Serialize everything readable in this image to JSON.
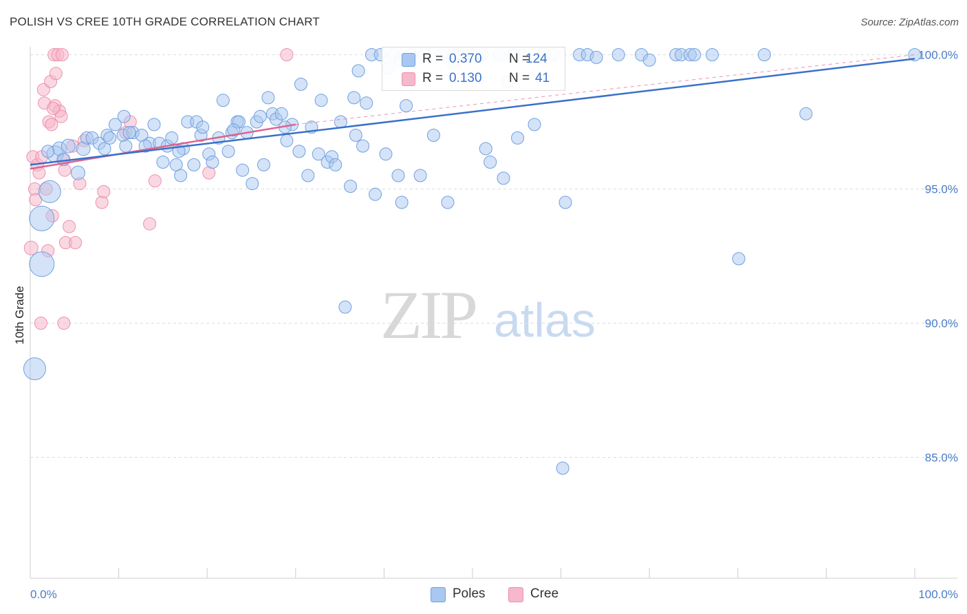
{
  "header": {
    "title": "POLISH VS CREE 10TH GRADE CORRELATION CHART",
    "source": "Source: ZipAtlas.com"
  },
  "watermark": {
    "zip": "ZIP",
    "atlas": "atlas"
  },
  "legend": {
    "rows": [
      {
        "swatch_color": "#a9c7f0",
        "r_label": "R =",
        "r_value": "0.370",
        "n_label": "N =",
        "n_value": "124"
      },
      {
        "swatch_color": "#f6b8cb",
        "r_label": "R =",
        "r_value": "0.130",
        "n_label": "N =",
        "n_value": "41"
      }
    ]
  },
  "bottom_legend": {
    "items": [
      {
        "label": "Poles",
        "color": "#a9c7f0"
      },
      {
        "label": "Cree",
        "color": "#f6b8cb"
      }
    ]
  },
  "chart_data": {
    "type": "scatter",
    "title": "POLISH VS CREE 10TH GRADE CORRELATION CHART",
    "ylabel": "10th Grade",
    "xlabel": "",
    "xlim": [
      0,
      100
    ],
    "ylim": [
      80.5,
      100.5
    ],
    "x_tick_labels": [
      "0.0%",
      "100.0%"
    ],
    "y_tick_labels": [
      "85.0%",
      "90.0%",
      "95.0%",
      "100.0%"
    ],
    "y_tick_values": [
      85,
      90,
      95,
      100
    ],
    "grid": "horizontal dashed",
    "legend_position": "top-center",
    "colors": {
      "poles": "#6fa0e0",
      "poles_fill": "#a9c7f0",
      "cree": "#ee8fae",
      "cree_fill": "#f6b8cb",
      "poles_line": "#3a70c8",
      "cree_line": "#e0628e"
    },
    "series": [
      {
        "name": "Poles",
        "trend": {
          "x": [
            0,
            100
          ],
          "y": [
            95.9,
            99.85
          ]
        },
        "points": [
          [
            0.5,
            88.3,
            16
          ],
          [
            1.3,
            92.2,
            18
          ],
          [
            1.3,
            93.9,
            18
          ],
          [
            2.2,
            94.9,
            16
          ],
          [
            2.8,
            96.3,
            12
          ],
          [
            3.3,
            96.5,
            10
          ],
          [
            4.3,
            96.6,
            10
          ],
          [
            5.4,
            95.6,
            10
          ],
          [
            6.0,
            96.5,
            10
          ],
          [
            6.4,
            96.9,
            9
          ],
          [
            7.0,
            96.9,
            9
          ],
          [
            7.8,
            96.7,
            9
          ],
          [
            8.4,
            96.5,
            9
          ],
          [
            8.7,
            97.0,
            9
          ],
          [
            9.0,
            96.9,
            9
          ],
          [
            9.6,
            97.4,
            9
          ],
          [
            10.5,
            97.0,
            9
          ],
          [
            10.6,
            97.7,
            9
          ],
          [
            10.8,
            96.6,
            9
          ],
          [
            11.6,
            97.1,
            9
          ],
          [
            12.6,
            97.0,
            9
          ],
          [
            13.5,
            96.7,
            9
          ],
          [
            14.0,
            97.4,
            9
          ],
          [
            14.6,
            96.7,
            9
          ],
          [
            15.0,
            96.0,
            9
          ],
          [
            15.5,
            96.6,
            9
          ],
          [
            16.0,
            96.9,
            9
          ],
          [
            16.5,
            95.9,
            9
          ],
          [
            17.0,
            95.5,
            9
          ],
          [
            17.3,
            96.5,
            9
          ],
          [
            17.8,
            97.5,
            9
          ],
          [
            18.5,
            95.9,
            9
          ],
          [
            18.8,
            97.5,
            9
          ],
          [
            19.3,
            97.0,
            9
          ],
          [
            19.5,
            97.3,
            9
          ],
          [
            20.2,
            96.3,
            9
          ],
          [
            20.6,
            96.0,
            9
          ],
          [
            21.3,
            96.9,
            9
          ],
          [
            21.8,
            98.3,
            9
          ],
          [
            22.4,
            96.4,
            9
          ],
          [
            22.8,
            97.1,
            9
          ],
          [
            23.4,
            97.5,
            9
          ],
          [
            23.6,
            97.5,
            9
          ],
          [
            24.0,
            95.7,
            9
          ],
          [
            24.5,
            97.1,
            9
          ],
          [
            25.1,
            95.2,
            9
          ],
          [
            25.6,
            97.5,
            9
          ],
          [
            26.4,
            95.9,
            9
          ],
          [
            26.9,
            98.4,
            9
          ],
          [
            27.4,
            97.8,
            9
          ],
          [
            27.8,
            97.6,
            9
          ],
          [
            28.4,
            97.8,
            9
          ],
          [
            29.0,
            96.8,
            9
          ],
          [
            29.6,
            97.4,
            9
          ],
          [
            30.4,
            96.4,
            9
          ],
          [
            30.6,
            98.9,
            9
          ],
          [
            31.4,
            95.5,
            9
          ],
          [
            31.8,
            97.3,
            9
          ],
          [
            32.6,
            96.3,
            9
          ],
          [
            32.9,
            98.3,
            9
          ],
          [
            33.6,
            96.0,
            9
          ],
          [
            34.1,
            96.2,
            9
          ],
          [
            34.5,
            95.9,
            9
          ],
          [
            35.1,
            97.5,
            9
          ],
          [
            35.6,
            90.6,
            9
          ],
          [
            36.2,
            95.1,
            9
          ],
          [
            36.6,
            98.4,
            9
          ],
          [
            37.1,
            99.4,
            9
          ],
          [
            37.6,
            96.6,
            9
          ],
          [
            38.0,
            98.2,
            9
          ],
          [
            38.6,
            100.0,
            9
          ],
          [
            39.0,
            94.8,
            9
          ],
          [
            39.6,
            100.0,
            9
          ],
          [
            40.2,
            96.3,
            9
          ],
          [
            40.5,
            99.5,
            9
          ],
          [
            41.1,
            100.0,
            9
          ],
          [
            41.6,
            95.5,
            9
          ],
          [
            42.0,
            94.5,
            9
          ],
          [
            42.5,
            98.1,
            9
          ],
          [
            43.0,
            100.0,
            9
          ],
          [
            44.1,
            95.5,
            9
          ],
          [
            44.6,
            100.0,
            9
          ],
          [
            45.6,
            97.0,
            9
          ],
          [
            46.5,
            100.0,
            9
          ],
          [
            47.2,
            94.5,
            9
          ],
          [
            48.1,
            100.0,
            9
          ],
          [
            49.0,
            100.0,
            9
          ],
          [
            50.0,
            100.0,
            9
          ],
          [
            51.1,
            100.0,
            9
          ],
          [
            51.5,
            96.5,
            9
          ],
          [
            52.0,
            96.0,
            9
          ],
          [
            53.0,
            100.0,
            9
          ],
          [
            53.5,
            95.4,
            9
          ],
          [
            54.0,
            99.0,
            9
          ],
          [
            54.6,
            100.0,
            9
          ],
          [
            55.1,
            96.9,
            9
          ],
          [
            55.6,
            100.0,
            9
          ],
          [
            57.0,
            97.4,
            9
          ],
          [
            58.0,
            100.0,
            9
          ],
          [
            59.1,
            100.0,
            9
          ],
          [
            60.5,
            94.5,
            9
          ],
          [
            60.2,
            84.6,
            9
          ],
          [
            62.1,
            100.0,
            9
          ],
          [
            63.0,
            100.0,
            9
          ],
          [
            66.5,
            100.0,
            9
          ],
          [
            69.1,
            100.0,
            9
          ],
          [
            73.0,
            100.0,
            9
          ],
          [
            73.6,
            100.0,
            9
          ],
          [
            74.6,
            100.0,
            9
          ],
          [
            75.1,
            100.0,
            9
          ],
          [
            77.1,
            100.0,
            9
          ],
          [
            80.1,
            92.4,
            9
          ],
          [
            83.0,
            100.0,
            9
          ],
          [
            87.7,
            97.8,
            9
          ],
          [
            100.0,
            100.0,
            9
          ],
          [
            2.0,
            96.4,
            9
          ],
          [
            3.8,
            96.1,
            9
          ],
          [
            11.2,
            97.1,
            9
          ],
          [
            13.0,
            96.6,
            9
          ],
          [
            16.8,
            96.4,
            9
          ],
          [
            23.0,
            97.2,
            9
          ],
          [
            26.0,
            97.7,
            9
          ],
          [
            28.8,
            97.3,
            9
          ],
          [
            36.8,
            97.0,
            9
          ],
          [
            41.8,
            99.8,
            9
          ],
          [
            47.8,
            99.7,
            9
          ],
          [
            64.0,
            99.9,
            9
          ],
          [
            70.0,
            99.8,
            9
          ]
        ]
      },
      {
        "name": "Cree",
        "trend": {
          "x": [
            0,
            30.0
          ],
          "y": [
            95.75,
            97.4
          ]
        },
        "trend_extension": {
          "x": [
            30.0,
            100
          ],
          "y": [
            97.4,
            100.0
          ]
        },
        "points": [
          [
            0.1,
            92.8,
            10
          ],
          [
            0.3,
            96.2,
            9
          ],
          [
            0.5,
            95.0,
            9
          ],
          [
            0.6,
            94.6,
            9
          ],
          [
            0.8,
            95.9,
            9
          ],
          [
            1.0,
            95.6,
            9
          ],
          [
            1.2,
            90.0,
            9
          ],
          [
            1.3,
            96.2,
            9
          ],
          [
            1.5,
            98.7,
            9
          ],
          [
            1.6,
            98.2,
            9
          ],
          [
            1.8,
            95.0,
            9
          ],
          [
            2.0,
            92.7,
            9
          ],
          [
            2.1,
            97.5,
            9
          ],
          [
            2.3,
            99.0,
            9
          ],
          [
            2.4,
            97.4,
            9
          ],
          [
            2.5,
            94.0,
            9
          ],
          [
            2.7,
            100.0,
            9
          ],
          [
            2.8,
            98.1,
            9
          ],
          [
            2.9,
            99.3,
            9
          ],
          [
            3.1,
            100.0,
            9
          ],
          [
            3.3,
            97.9,
            9
          ],
          [
            3.5,
            97.7,
            9
          ],
          [
            3.6,
            100.0,
            9
          ],
          [
            3.7,
            96.1,
            9
          ],
          [
            3.8,
            90.0,
            9
          ],
          [
            3.9,
            95.7,
            9
          ],
          [
            4.0,
            93.0,
            9
          ],
          [
            4.4,
            93.6,
            9
          ],
          [
            4.8,
            96.6,
            9
          ],
          [
            5.1,
            93.0,
            9
          ],
          [
            5.6,
            95.2,
            9
          ],
          [
            6.1,
            96.8,
            9
          ],
          [
            8.1,
            94.5,
            9
          ],
          [
            8.3,
            94.9,
            9
          ],
          [
            10.8,
            97.1,
            9
          ],
          [
            11.3,
            97.5,
            9
          ],
          [
            13.5,
            93.7,
            9
          ],
          [
            14.1,
            95.3,
            9
          ],
          [
            20.2,
            95.6,
            9
          ],
          [
            29.0,
            100.0,
            9
          ],
          [
            2.6,
            98.0,
            9
          ]
        ]
      }
    ]
  }
}
